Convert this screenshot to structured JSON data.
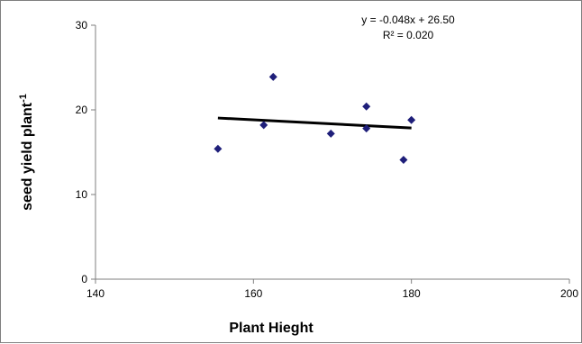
{
  "chart_data": {
    "type": "scatter",
    "title": "",
    "xlabel": "Plant Hieght",
    "ylabel": "seed yield plant",
    "ylabel_sup": "-1",
    "xlim": [
      140,
      200
    ],
    "ylim": [
      0,
      30
    ],
    "x_ticks": [
      "140",
      "160",
      "180",
      "200"
    ],
    "y_ticks": [
      "0",
      "10",
      "20",
      "30"
    ],
    "grid": false,
    "legend": "none",
    "marker_color": "#1f1f7a",
    "trendline_color": "#000000",
    "points": [
      {
        "x": 155.5,
        "y": 15.4
      },
      {
        "x": 161.3,
        "y": 18.2
      },
      {
        "x": 162.5,
        "y": 23.9
      },
      {
        "x": 169.8,
        "y": 17.2
      },
      {
        "x": 174.3,
        "y": 20.4
      },
      {
        "x": 174.3,
        "y": 17.8
      },
      {
        "x": 179.0,
        "y": 14.1
      },
      {
        "x": 180.0,
        "y": 18.8
      }
    ],
    "trendline": {
      "x_start": 155.5,
      "x_end": 180.0,
      "slope": -0.048,
      "intercept": 26.5,
      "equation": "y = -0.048x + 26.50",
      "r2": "R² = 0.020"
    }
  }
}
